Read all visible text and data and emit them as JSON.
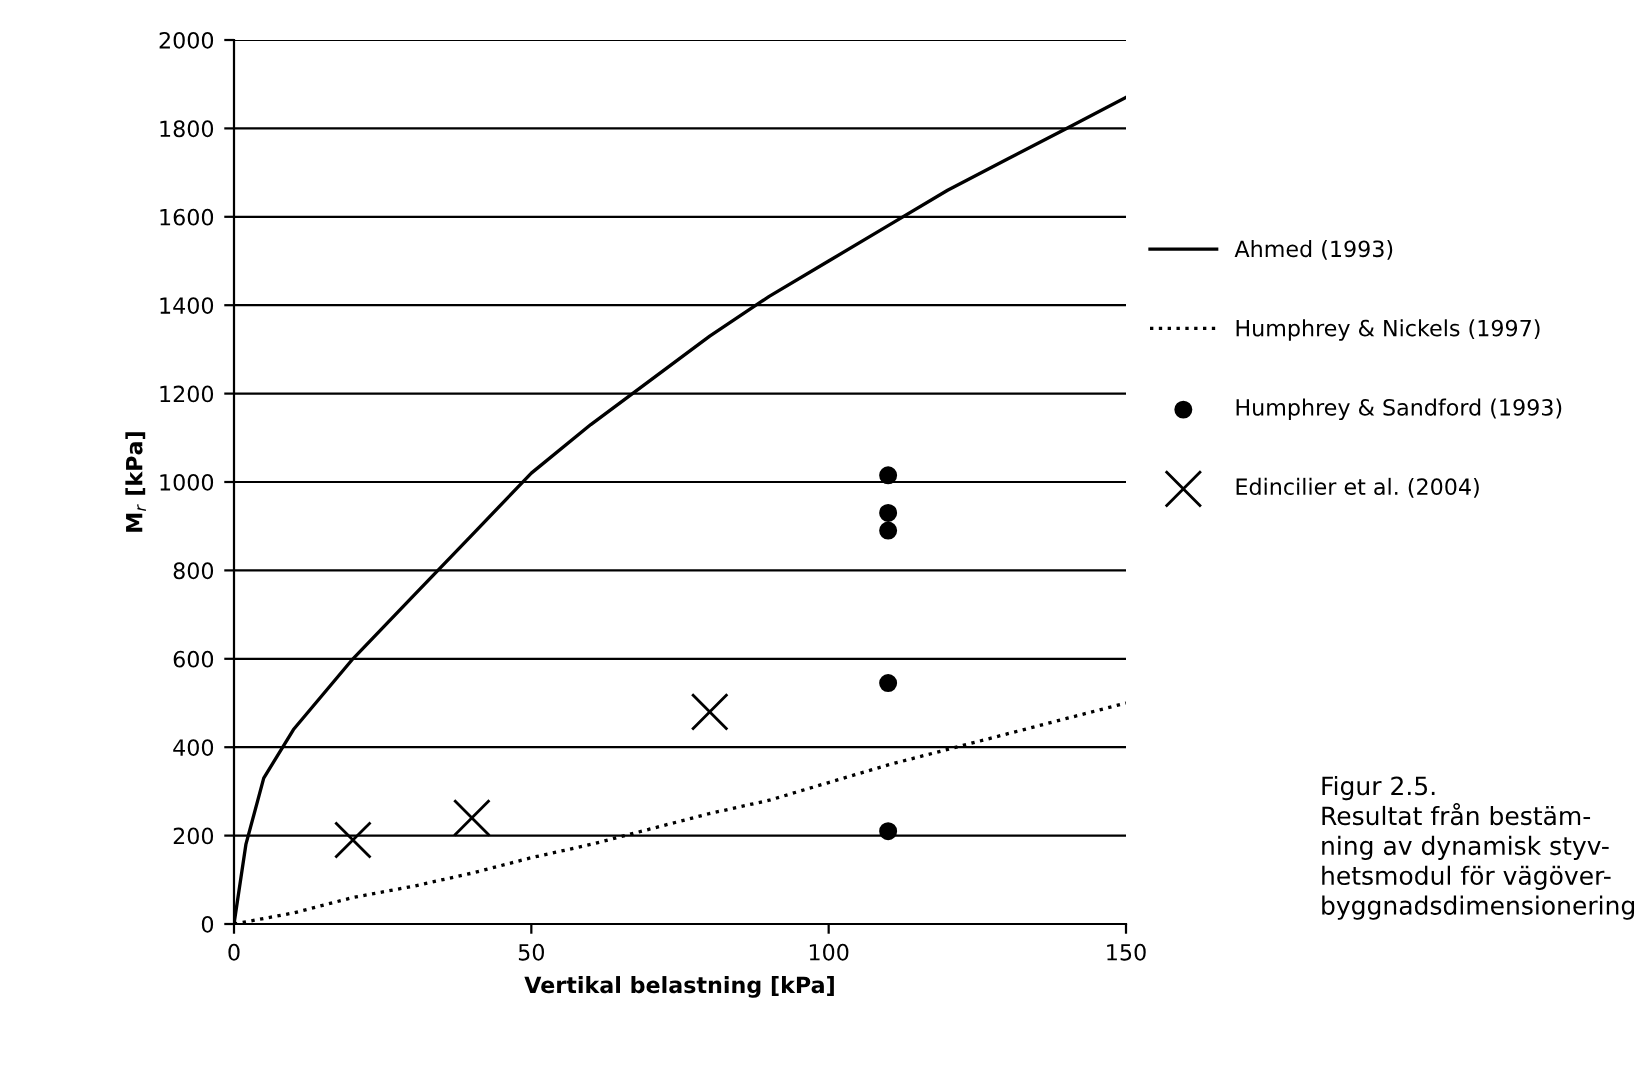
{
  "chart_data": {
    "type": "line",
    "xlabel": "Vertikal belastning [kPa]",
    "ylabel": "M$_{r}$ [kPa]",
    "xlim": [
      0,
      150
    ],
    "xticks": [
      0,
      50,
      100,
      150
    ],
    "ylim": [
      0,
      2000
    ],
    "yticks": [
      0,
      200,
      400,
      600,
      800,
      1000,
      1200,
      1400,
      1600,
      1800,
      2000
    ],
    "grid": "y",
    "legend": "right",
    "series": [
      {
        "name": "Ahmed (1993)",
        "color": "#000000",
        "line_style": "solid",
        "marker": "none",
        "x": [
          0,
          2,
          5,
          10,
          20,
          30,
          40,
          50,
          60,
          70,
          80,
          90,
          100,
          110,
          120,
          130,
          140,
          150
        ],
        "values": [
          0,
          180,
          330,
          440,
          600,
          740,
          880,
          1020,
          1130,
          1230,
          1330,
          1420,
          1500,
          1580,
          1660,
          1730,
          1800,
          1870
        ]
      },
      {
        "name": "Humphrey & Nickels (1997)",
        "color": "#000000",
        "line_style": "dotted",
        "marker": "none",
        "x": [
          0,
          10,
          20,
          30,
          40,
          50,
          60,
          70,
          80,
          90,
          100,
          110,
          120,
          130,
          140,
          150
        ],
        "values": [
          0,
          25,
          60,
          85,
          115,
          150,
          180,
          215,
          250,
          280,
          320,
          360,
          395,
          430,
          465,
          500
        ]
      },
      {
        "name": "Humphrey & Sandford (1993)",
        "type": "scatter",
        "color": "#000000",
        "marker": "circle",
        "x": [
          110,
          110,
          110,
          110,
          110
        ],
        "values": [
          1015,
          930,
          890,
          545,
          210
        ]
      },
      {
        "name": "Edincilier et al. (2004)",
        "type": "scatter",
        "color": "#000000",
        "marker": "cross",
        "x": [
          20,
          40,
          80
        ],
        "values": [
          190,
          240,
          480
        ]
      }
    ],
    "annotations": [
      "Figur 2.5.\nResultat från bestäm-\nning av dynamisk styv-\nhetsmodul för vägöver-\nbyggnadsdimensionering"
    ]
  }
}
